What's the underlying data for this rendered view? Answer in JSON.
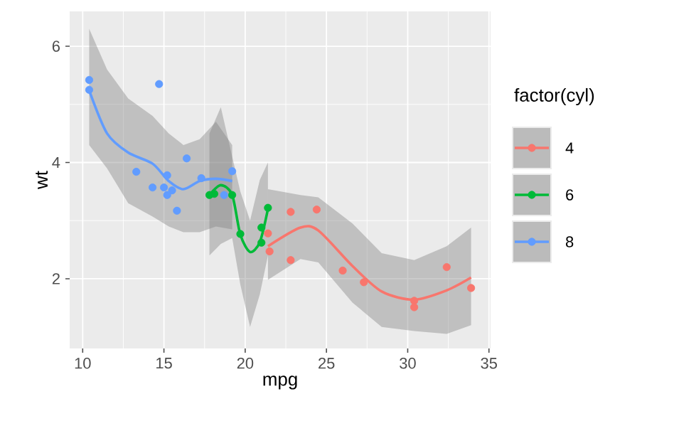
{
  "chart_data": {
    "type": "scatter",
    "xlabel": "mpg",
    "ylabel": "wt",
    "legend_title": "factor(cyl)",
    "xlim": [
      9.2,
      35.1
    ],
    "ylim": [
      0.8,
      6.6
    ],
    "xticks": [
      10,
      15,
      20,
      25,
      30,
      35
    ],
    "yticks": [
      2,
      4,
      6
    ],
    "grid": true,
    "legend": "right",
    "marker": "circle",
    "series": [
      {
        "name": "4",
        "color": "#f8766d",
        "x": [
          22.8,
          24.4,
          22.8,
          32.4,
          30.4,
          33.9,
          21.5,
          27.3,
          26.0,
          30.4,
          21.4
        ],
        "values": [
          2.32,
          3.19,
          3.15,
          2.2,
          1.62,
          1.84,
          2.47,
          1.94,
          2.14,
          1.51,
          2.78
        ]
      },
      {
        "name": "6",
        "color": "#00ba38",
        "x": [
          21.0,
          21.0,
          21.4,
          18.1,
          19.2,
          17.8,
          19.7
        ],
        "values": [
          2.62,
          2.88,
          3.22,
          3.46,
          3.44,
          3.44,
          2.77
        ]
      },
      {
        "name": "8",
        "color": "#619cff",
        "x": [
          18.7,
          14.3,
          16.4,
          17.3,
          15.2,
          10.4,
          10.4,
          14.7,
          15.5,
          15.2,
          13.3,
          19.2,
          15.8,
          15.0
        ],
        "values": [
          3.44,
          3.57,
          4.07,
          3.73,
          3.78,
          5.25,
          5.42,
          5.35,
          3.52,
          3.44,
          3.84,
          3.85,
          3.17,
          3.57
        ]
      },
      {
        "color": "#f8766d",
        "type": "line",
        "marker": "none",
        "x": [
          21.4,
          23.4,
          24.5,
          26.6,
          28.4,
          30.4,
          32.4,
          33.9
        ],
        "values": [
          2.56,
          2.88,
          2.83,
          2.22,
          1.78,
          1.64,
          1.8,
          2.02
        ],
        "upper": [
          3.54,
          3.44,
          3.4,
          2.95,
          2.44,
          2.32,
          2.56,
          2.88
        ],
        "lower": [
          1.98,
          2.34,
          2.28,
          1.59,
          1.17,
          1.1,
          1.05,
          1.2
        ]
      },
      {
        "color": "#00ba38",
        "type": "line",
        "marker": "none",
        "x": [
          17.8,
          18.5,
          19.2,
          19.7,
          20.3,
          20.9,
          21.4
        ],
        "values": [
          3.44,
          3.61,
          3.44,
          2.76,
          2.46,
          2.63,
          3.2
        ],
        "upper": [
          4.5,
          4.95,
          4.1,
          3.5,
          3.0,
          3.7,
          4.0
        ],
        "lower": [
          2.4,
          2.6,
          2.7,
          1.9,
          1.17,
          1.73,
          2.4
        ]
      },
      {
        "color": "#619cff",
        "type": "line",
        "marker": "none",
        "x": [
          10.4,
          11.5,
          12.8,
          14.3,
          15.3,
          16.2,
          17.2,
          18.2,
          19.2
        ],
        "values": [
          5.24,
          4.5,
          4.17,
          3.98,
          3.68,
          3.54,
          3.68,
          3.72,
          3.68
        ],
        "upper": [
          6.3,
          5.6,
          5.1,
          4.8,
          4.5,
          4.3,
          4.4,
          4.7,
          4.3
        ],
        "lower": [
          4.3,
          3.9,
          3.3,
          3.07,
          2.9,
          2.8,
          2.8,
          2.9,
          2.85
        ]
      }
    ]
  }
}
